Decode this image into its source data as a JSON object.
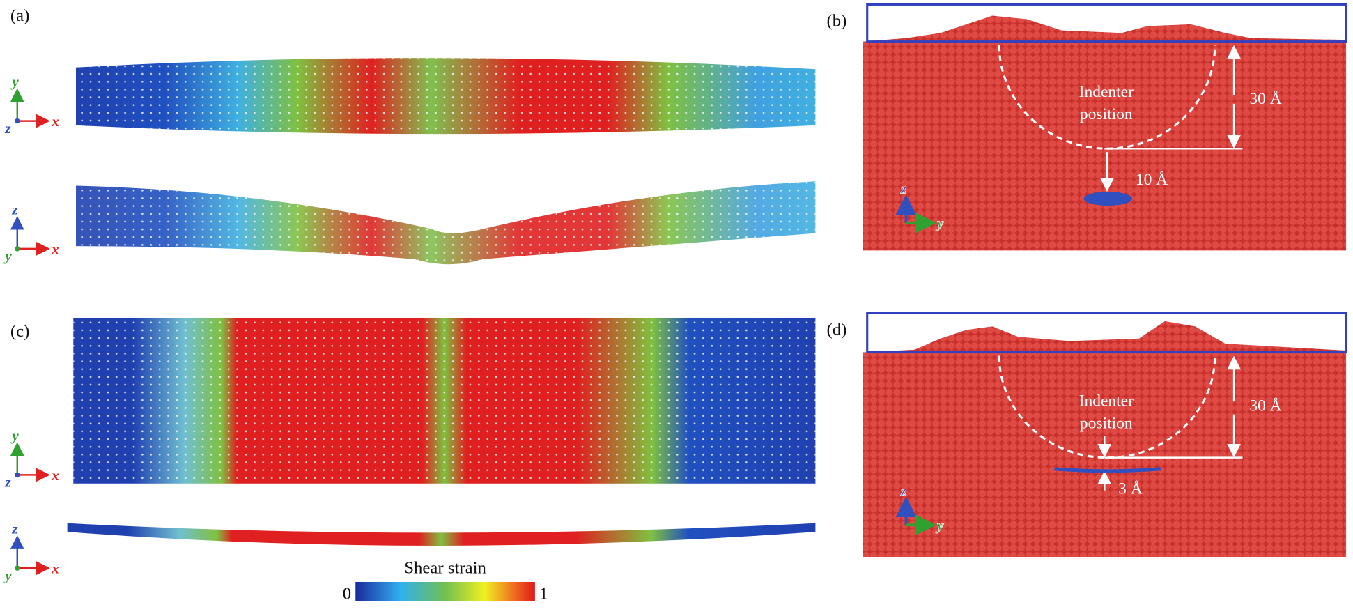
{
  "panels": [
    {
      "label": "(a)",
      "views": [
        {
          "axes": [
            "y",
            "z",
            "x"
          ]
        },
        {
          "axes": [
            "z",
            "y",
            "x"
          ]
        }
      ]
    },
    {
      "label": "(b)",
      "annotation": [
        "Indenter",
        "position"
      ],
      "depth": "30 Å",
      "gap": "10 Å",
      "axes": [
        "z",
        "y"
      ]
    },
    {
      "label": "(c)",
      "views": [
        {
          "axes": [
            "y",
            "z",
            "x"
          ]
        },
        {
          "axes": [
            "z",
            "y",
            "x"
          ]
        }
      ]
    },
    {
      "label": "(d)",
      "annotation": [
        "Indenter",
        "position"
      ],
      "depth": "30 Å",
      "gap": "3 Å",
      "axes": [
        "z",
        "y"
      ]
    }
  ],
  "colorbar": {
    "title": "Shear strain",
    "min": 0,
    "max": 1
  }
}
